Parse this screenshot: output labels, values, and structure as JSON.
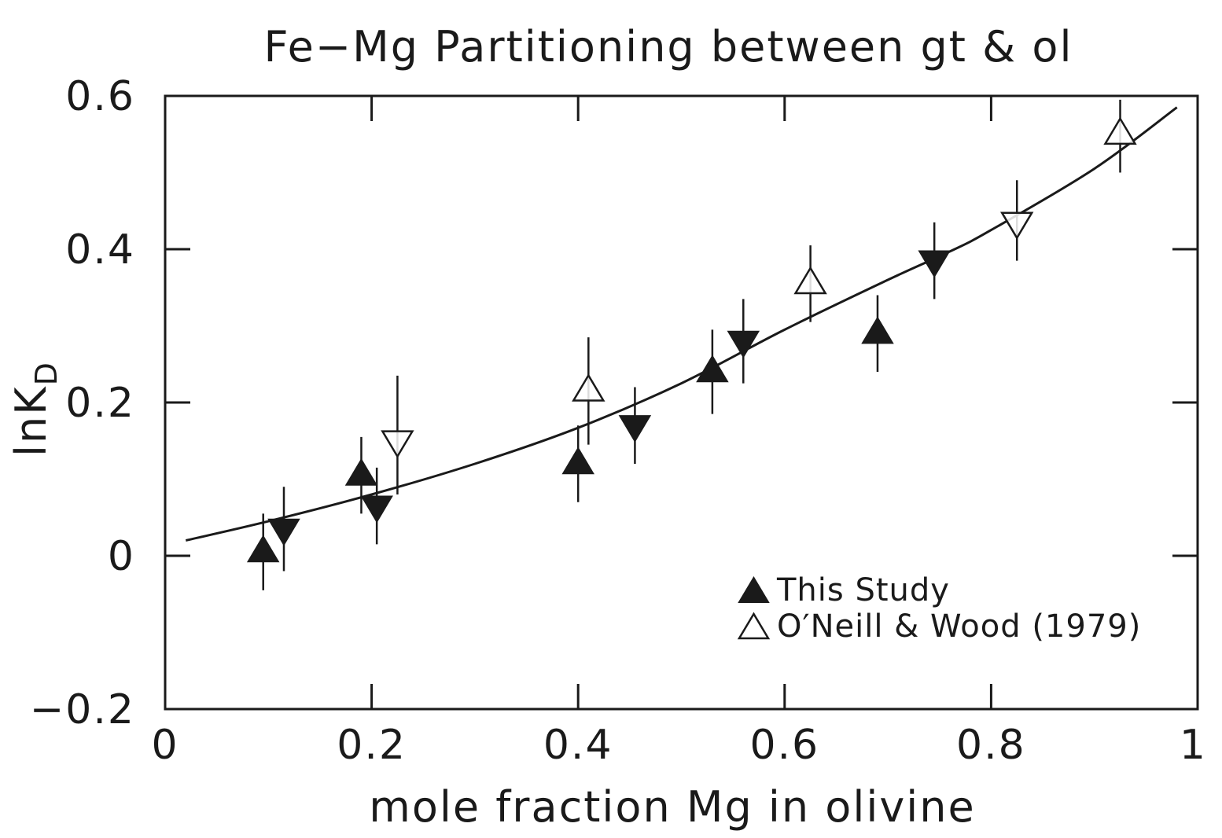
{
  "chart_data": {
    "type": "scatter",
    "title": "Fe−Mg Partitioning between gt & ol",
    "xlabel": "mole fraction Mg in olivine",
    "ylabel": {
      "main": "lnK",
      "sub": "D"
    },
    "xlim": [
      0,
      1
    ],
    "ylim": [
      -0.2,
      0.6
    ],
    "xticks": [
      {
        "value": 0,
        "label": "0"
      },
      {
        "value": 0.2,
        "label": "0.2"
      },
      {
        "value": 0.4,
        "label": "0.4"
      },
      {
        "value": 0.6,
        "label": "0.6"
      },
      {
        "value": 0.8,
        "label": "0.8"
      },
      {
        "value": 1,
        "label": "1"
      }
    ],
    "yticks": [
      {
        "value": -0.2,
        "label": "−0.2"
      },
      {
        "value": 0,
        "label": "0"
      },
      {
        "value": 0.2,
        "label": "0.2"
      },
      {
        "value": 0.4,
        "label": "0.4"
      },
      {
        "value": 0.6,
        "label": "0.6"
      }
    ],
    "grid": false,
    "legend_position": "bottom-right",
    "series": [
      {
        "name": "This Study",
        "marker": "filled-triangle",
        "points": [
          {
            "x": 0.095,
            "y": 0.005,
            "dir": "up",
            "err": 0.05
          },
          {
            "x": 0.115,
            "y": 0.035,
            "dir": "down",
            "err": 0.055
          },
          {
            "x": 0.19,
            "y": 0.105,
            "dir": "up",
            "err": 0.05
          },
          {
            "x": 0.205,
            "y": 0.065,
            "dir": "down",
            "err": 0.05
          },
          {
            "x": 0.4,
            "y": 0.12,
            "dir": "up",
            "err": 0.05
          },
          {
            "x": 0.455,
            "y": 0.17,
            "dir": "down",
            "err": 0.05
          },
          {
            "x": 0.53,
            "y": 0.24,
            "dir": "up",
            "err": 0.055
          },
          {
            "x": 0.56,
            "y": 0.28,
            "dir": "down",
            "err": 0.055
          },
          {
            "x": 0.69,
            "y": 0.29,
            "dir": "up",
            "err": 0.05
          },
          {
            "x": 0.745,
            "y": 0.385,
            "dir": "down",
            "err": 0.05
          }
        ]
      },
      {
        "name": "O′Neill & Wood (1979)",
        "marker": "open-triangle",
        "points": [
          {
            "x": 0.225,
            "y": 0.15,
            "dir": "down",
            "err_up": 0.085,
            "err_down": 0.07
          },
          {
            "x": 0.41,
            "y": 0.215,
            "dir": "up",
            "err_up": 0.07,
            "err_down": 0.07
          },
          {
            "x": 0.625,
            "y": 0.355,
            "dir": "up",
            "err_up": 0.05,
            "err_down": 0.05
          },
          {
            "x": 0.825,
            "y": 0.435,
            "dir": "down",
            "err_up": 0.055,
            "err_down": 0.05
          },
          {
            "x": 0.925,
            "y": 0.55,
            "dir": "up",
            "err_up": 0.045,
            "err_down": 0.05
          }
        ]
      }
    ],
    "fit_curve": {
      "x": [
        0.02,
        0.1,
        0.2,
        0.3,
        0.4,
        0.5,
        0.6,
        0.7,
        0.76,
        0.8,
        0.9,
        0.98
      ],
      "y": [
        0.02,
        0.045,
        0.08,
        0.12,
        0.167,
        0.225,
        0.295,
        0.36,
        0.397,
        0.425,
        0.505,
        0.585
      ]
    }
  },
  "colors": {
    "ink": "#1a1a1a",
    "background": "#ffffff"
  }
}
